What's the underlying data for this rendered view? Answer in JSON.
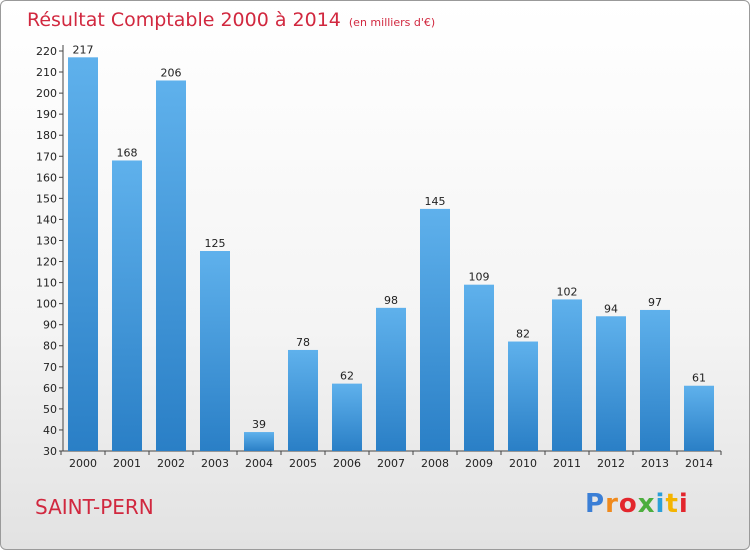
{
  "chart_data": {
    "type": "bar",
    "title": "Résultat Comptable 2000 à 2014",
    "unit": "(en milliers d'€)",
    "categories": [
      "2000",
      "2001",
      "2002",
      "2003",
      "2004",
      "2005",
      "2006",
      "2007",
      "2008",
      "2009",
      "2010",
      "2011",
      "2012",
      "2013",
      "2014"
    ],
    "values": [
      217,
      168,
      206,
      125,
      39,
      78,
      62,
      98,
      145,
      109,
      82,
      102,
      94,
      97,
      61
    ],
    "ylim": [
      30,
      220
    ],
    "yticks": [
      30,
      40,
      50,
      60,
      70,
      80,
      90,
      100,
      110,
      120,
      130,
      140,
      150,
      160,
      170,
      180,
      190,
      200,
      210,
      220
    ],
    "grid": false,
    "bar_color": "#3d95d8"
  },
  "place": "SAINT-PERN",
  "logo": {
    "text": "Proxiti",
    "colors": [
      "#3b7fd6",
      "#f08a1c",
      "#e3262d",
      "#4cae3e",
      "#2a9fd8",
      "#f4b400",
      "#e3262d"
    ]
  }
}
